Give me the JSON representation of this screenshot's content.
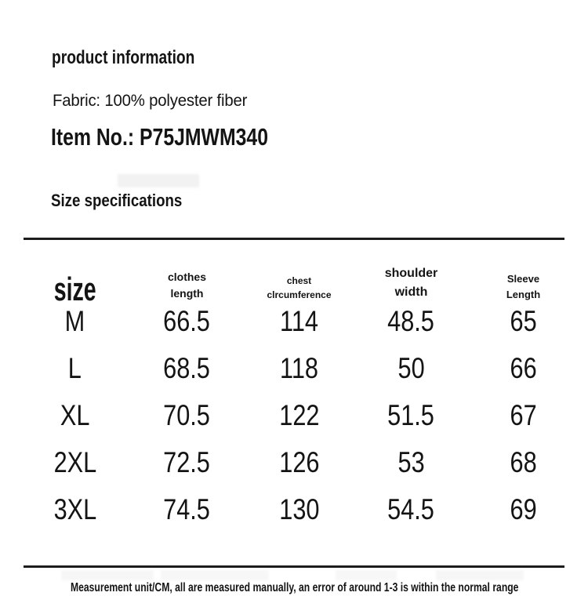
{
  "header": {
    "title": "product information",
    "fabric": "Fabric: 100% polyester fiber",
    "item_no": "Item No.: P75JMWM340",
    "section_title": "Size specifications"
  },
  "size_table": {
    "columns": [
      "size",
      "clothes\nlength",
      "chest\nclrcumference",
      "shoulder\nwidth",
      "Sleeve\nLength"
    ],
    "rows": [
      [
        "M",
        "66.5",
        "114",
        "48.5",
        "65"
      ],
      [
        "L",
        "68.5",
        "118",
        "50",
        "66"
      ],
      [
        "XL",
        "70.5",
        "122",
        "51.5",
        "67"
      ],
      [
        "2XL",
        "72.5",
        "126",
        "53",
        "68"
      ],
      [
        "3XL",
        "74.5",
        "130",
        "54.5",
        "69"
      ]
    ]
  },
  "footer": {
    "note": "Measurement unit/CM, all are measured manually, an error of around 1-3 is within the normal range"
  },
  "colors": {
    "text": "#141414",
    "rule": "#1c1c1c",
    "background": "#ffffff"
  }
}
